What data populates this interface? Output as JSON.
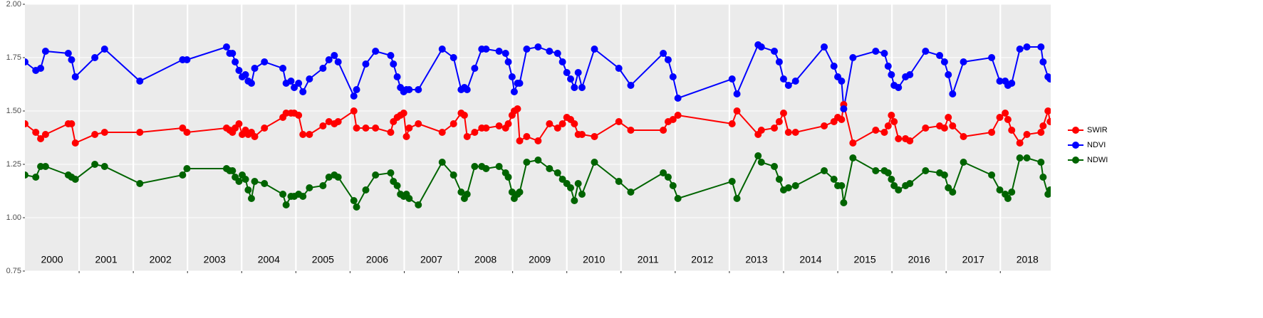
{
  "chart_data": {
    "type": "line",
    "x": [
      2000.0,
      2000.2,
      2000.29,
      2000.38,
      2000.8,
      2000.86,
      2000.93,
      2001.29,
      2001.47,
      2002.12,
      2002.91,
      2002.99,
      2003.72,
      2003.78,
      2003.83,
      2003.88,
      2003.95,
      2004.01,
      2004.07,
      2004.12,
      2004.18,
      2004.24,
      2004.42,
      2004.76,
      2004.82,
      2004.91,
      2004.97,
      2005.05,
      2005.13,
      2005.25,
      2005.5,
      2005.61,
      2005.71,
      2005.78,
      2006.07,
      2006.12,
      2006.29,
      2006.47,
      2006.75,
      2006.8,
      2006.87,
      2006.93,
      2006.99,
      2007.04,
      2007.09,
      2007.26,
      2007.7,
      2007.91,
      2008.05,
      2008.11,
      2008.16,
      2008.3,
      2008.43,
      2008.51,
      2008.75,
      2008.87,
      2008.92,
      2008.99,
      2009.03,
      2009.09,
      2009.13,
      2009.26,
      2009.47,
      2009.68,
      2009.83,
      2009.92,
      2010.0,
      2010.07,
      2010.14,
      2010.21,
      2010.28,
      2010.51,
      2010.96,
      2011.18,
      2011.78,
      2011.87,
      2011.96,
      2012.05,
      2013.05,
      2013.14,
      2013.53,
      2013.59,
      2013.83,
      2013.92,
      2014.0,
      2014.09,
      2014.22,
      2014.75,
      2014.93,
      2015.0,
      2015.07,
      2015.11,
      2015.28,
      2015.7,
      2015.86,
      2015.93,
      2015.99,
      2016.04,
      2016.12,
      2016.25,
      2016.33,
      2016.62,
      2016.88,
      2016.97,
      2017.04,
      2017.12,
      2017.32,
      2017.84,
      2017.99,
      2018.09,
      2018.14,
      2018.21,
      2018.36,
      2018.49,
      2018.75,
      2018.79,
      2018.88,
      2018.92
    ],
    "series": [
      {
        "name": "SWIR",
        "color": "#ff0000",
        "values": [
          1.44,
          1.4,
          1.37,
          1.39,
          1.44,
          1.44,
          1.35,
          1.39,
          1.4,
          1.4,
          1.42,
          1.4,
          1.42,
          1.41,
          1.4,
          1.42,
          1.44,
          1.39,
          1.41,
          1.39,
          1.4,
          1.38,
          1.42,
          1.47,
          1.49,
          1.49,
          1.49,
          1.48,
          1.39,
          1.39,
          1.43,
          1.45,
          1.44,
          1.45,
          1.5,
          1.42,
          1.42,
          1.42,
          1.4,
          1.45,
          1.47,
          1.48,
          1.49,
          1.38,
          1.42,
          1.44,
          1.4,
          1.44,
          1.49,
          1.48,
          1.38,
          1.4,
          1.42,
          1.42,
          1.43,
          1.42,
          1.44,
          1.48,
          1.5,
          1.51,
          1.36,
          1.38,
          1.36,
          1.44,
          1.42,
          1.44,
          1.47,
          1.46,
          1.44,
          1.39,
          1.39,
          1.38,
          1.45,
          1.41,
          1.41,
          1.45,
          1.46,
          1.48,
          1.44,
          1.5,
          1.39,
          1.41,
          1.42,
          1.45,
          1.49,
          1.4,
          1.4,
          1.43,
          1.45,
          1.47,
          1.46,
          1.53,
          1.35,
          1.41,
          1.4,
          1.43,
          1.48,
          1.45,
          1.37,
          1.37,
          1.36,
          1.42,
          1.43,
          1.42,
          1.47,
          1.43,
          1.38,
          1.4,
          1.47,
          1.49,
          1.46,
          1.41,
          1.35,
          1.39,
          1.4,
          1.43,
          1.5,
          1.45
        ]
      },
      {
        "name": "NDVI",
        "color": "#0000ff",
        "values": [
          1.73,
          1.69,
          1.7,
          1.78,
          1.77,
          1.74,
          1.66,
          1.75,
          1.79,
          1.64,
          1.74,
          1.74,
          1.8,
          1.77,
          1.77,
          1.73,
          1.69,
          1.66,
          1.67,
          1.64,
          1.63,
          1.7,
          1.73,
          1.7,
          1.63,
          1.64,
          1.61,
          1.63,
          1.59,
          1.65,
          1.7,
          1.74,
          1.76,
          1.73,
          1.57,
          1.6,
          1.72,
          1.78,
          1.76,
          1.72,
          1.66,
          1.61,
          1.59,
          1.6,
          1.6,
          1.6,
          1.79,
          1.75,
          1.6,
          1.61,
          1.6,
          1.7,
          1.79,
          1.79,
          1.78,
          1.77,
          1.73,
          1.66,
          1.59,
          1.63,
          1.63,
          1.79,
          1.8,
          1.78,
          1.77,
          1.73,
          1.68,
          1.65,
          1.61,
          1.68,
          1.61,
          1.79,
          1.7,
          1.62,
          1.77,
          1.74,
          1.66,
          1.56,
          1.65,
          1.58,
          1.81,
          1.8,
          1.78,
          1.73,
          1.65,
          1.62,
          1.64,
          1.8,
          1.71,
          1.66,
          1.64,
          1.51,
          1.75,
          1.78,
          1.77,
          1.71,
          1.67,
          1.62,
          1.61,
          1.66,
          1.67,
          1.78,
          1.76,
          1.73,
          1.67,
          1.58,
          1.73,
          1.75,
          1.64,
          1.64,
          1.62,
          1.63,
          1.79,
          1.8,
          1.8,
          1.73,
          1.66,
          1.65
        ]
      },
      {
        "name": "NDWI",
        "color": "#006400",
        "values": [
          1.2,
          1.19,
          1.24,
          1.24,
          1.2,
          1.19,
          1.18,
          1.25,
          1.24,
          1.16,
          1.2,
          1.23,
          1.23,
          1.22,
          1.22,
          1.19,
          1.17,
          1.2,
          1.18,
          1.13,
          1.09,
          1.17,
          1.16,
          1.11,
          1.06,
          1.1,
          1.1,
          1.11,
          1.1,
          1.14,
          1.15,
          1.19,
          1.2,
          1.19,
          1.08,
          1.05,
          1.13,
          1.2,
          1.21,
          1.17,
          1.15,
          1.11,
          1.1,
          1.11,
          1.09,
          1.06,
          1.26,
          1.2,
          1.12,
          1.09,
          1.11,
          1.24,
          1.24,
          1.23,
          1.24,
          1.21,
          1.19,
          1.12,
          1.09,
          1.11,
          1.12,
          1.26,
          1.27,
          1.23,
          1.21,
          1.18,
          1.16,
          1.14,
          1.08,
          1.16,
          1.11,
          1.26,
          1.17,
          1.12,
          1.21,
          1.19,
          1.15,
          1.09,
          1.17,
          1.09,
          1.29,
          1.26,
          1.24,
          1.18,
          1.13,
          1.14,
          1.15,
          1.22,
          1.18,
          1.15,
          1.15,
          1.07,
          1.28,
          1.22,
          1.22,
          1.21,
          1.18,
          1.15,
          1.13,
          1.15,
          1.16,
          1.22,
          1.21,
          1.2,
          1.14,
          1.12,
          1.26,
          1.2,
          1.13,
          1.11,
          1.09,
          1.12,
          1.28,
          1.28,
          1.26,
          1.19,
          1.11,
          1.13
        ]
      }
    ],
    "xlim": [
      2000,
      2018.93
    ],
    "xticks": [
      {
        "value": 2000.5,
        "label": "2000"
      },
      {
        "value": 2001.5,
        "label": "2001"
      },
      {
        "value": 2002.5,
        "label": "2002"
      },
      {
        "value": 2003.5,
        "label": "2003"
      },
      {
        "value": 2004.5,
        "label": "2004"
      },
      {
        "value": 2005.5,
        "label": "2005"
      },
      {
        "value": 2006.5,
        "label": "2006"
      },
      {
        "value": 2007.5,
        "label": "2007"
      },
      {
        "value": 2008.5,
        "label": "2008"
      },
      {
        "value": 2009.5,
        "label": "2009"
      },
      {
        "value": 2010.5,
        "label": "2010"
      },
      {
        "value": 2011.5,
        "label": "2011"
      },
      {
        "value": 2012.5,
        "label": "2012"
      },
      {
        "value": 2013.5,
        "label": "2013"
      },
      {
        "value": 2014.5,
        "label": "2014"
      },
      {
        "value": 2015.5,
        "label": "2015"
      },
      {
        "value": 2016.5,
        "label": "2016"
      },
      {
        "value": 2017.5,
        "label": "2017"
      },
      {
        "value": 2018.5,
        "label": "2018"
      }
    ],
    "xgrid": [
      2001,
      2002,
      2003,
      2004,
      2005,
      2006,
      2007,
      2008,
      2009,
      2010,
      2011,
      2012,
      2013,
      2014,
      2015,
      2016,
      2017,
      2018
    ],
    "ylim": [
      0.75,
      2.0
    ],
    "yticks": [
      0.75,
      {
        "value": 1,
        "label": "1.00"
      },
      1.25,
      {
        "value": 1.5,
        "label": "1.50"
      },
      1.75,
      {
        "value": 2,
        "label": "2.00"
      }
    ],
    "grid": true,
    "legend": "right"
  }
}
